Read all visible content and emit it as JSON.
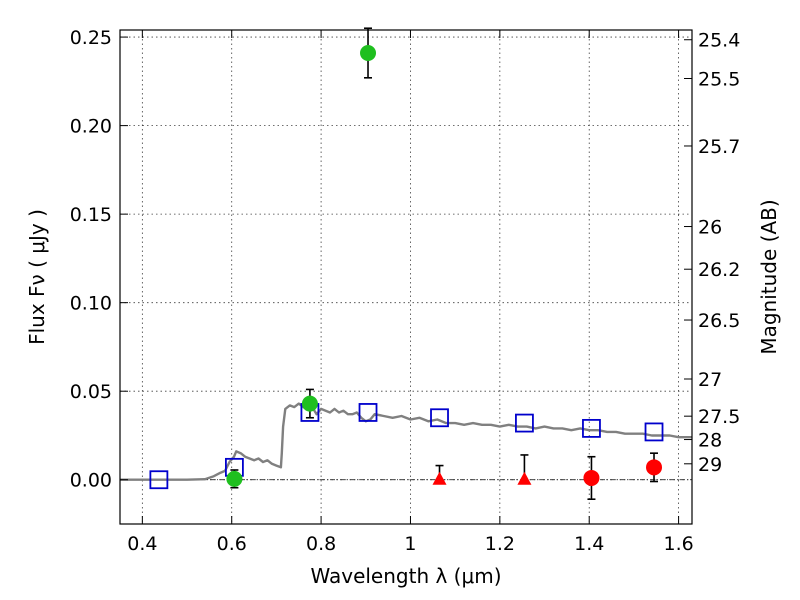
{
  "chart_data": {
    "type": "scatter",
    "title": "",
    "xlabel": "Wavelength  λ (μm)",
    "ylabel": "Flux  Fν  ( μJy )",
    "y2label": "Magnitude (AB)",
    "xlim": [
      0.35,
      1.63
    ],
    "ylim": [
      -0.025,
      0.254
    ],
    "grid": true,
    "x_ticks": [
      0.4,
      0.6,
      0.8,
      1.0,
      1.2,
      1.4,
      1.6
    ],
    "x_tick_labels": [
      "0.4",
      "0.6",
      "0.8",
      "1",
      "1.2",
      "1.4",
      "1.6"
    ],
    "y_ticks": [
      0.0,
      0.05,
      0.1,
      0.15,
      0.2,
      0.25
    ],
    "y_tick_labels": [
      "0.00",
      "0.05",
      "0.10",
      "0.15",
      "0.20",
      "0.25"
    ],
    "mag_ticks": [
      {
        "label": "25.4",
        "flux": 0.2485
      },
      {
        "label": "25.5",
        "flux": 0.2266
      },
      {
        "label": "25.7",
        "flux": 0.1885
      },
      {
        "label": "26",
        "flux": 0.143
      },
      {
        "label": "26.2",
        "flux": 0.1189
      },
      {
        "label": "26.5",
        "flux": 0.0902
      },
      {
        "label": "27",
        "flux": 0.0569
      },
      {
        "label": "27.5",
        "flux": 0.0359
      },
      {
        "label": "28",
        "flux": 0.0227
      },
      {
        "label": "29",
        "flux": 0.009
      }
    ],
    "colors": {
      "model": "#808080",
      "green": "#1fbf1f",
      "red": "#ff0000",
      "blue": "#0000cc",
      "errorbar": "#000000"
    },
    "series": [
      {
        "marker": "line",
        "points": [
          [
            0.35,
            0.0
          ],
          [
            0.5,
            0.0
          ],
          [
            0.54,
            0.0003
          ],
          [
            0.56,
            0.002
          ],
          [
            0.575,
            0.004
          ],
          [
            0.585,
            0.005
          ],
          [
            0.595,
            0.01
          ],
          [
            0.605,
            0.013
          ],
          [
            0.61,
            0.016
          ],
          [
            0.62,
            0.015
          ],
          [
            0.63,
            0.013
          ],
          [
            0.64,
            0.012
          ],
          [
            0.65,
            0.011
          ],
          [
            0.66,
            0.012
          ],
          [
            0.67,
            0.01
          ],
          [
            0.68,
            0.011
          ],
          [
            0.69,
            0.009
          ],
          [
            0.7,
            0.008
          ],
          [
            0.71,
            0.007
          ],
          [
            0.712,
            0.015
          ],
          [
            0.715,
            0.03
          ],
          [
            0.72,
            0.04
          ],
          [
            0.73,
            0.042
          ],
          [
            0.74,
            0.041
          ],
          [
            0.75,
            0.043
          ],
          [
            0.76,
            0.041
          ],
          [
            0.77,
            0.04
          ],
          [
            0.78,
            0.041
          ],
          [
            0.79,
            0.037
          ],
          [
            0.8,
            0.04
          ],
          [
            0.81,
            0.039
          ],
          [
            0.82,
            0.038
          ],
          [
            0.83,
            0.04
          ],
          [
            0.84,
            0.038
          ],
          [
            0.85,
            0.039
          ],
          [
            0.86,
            0.037
          ],
          [
            0.87,
            0.037
          ],
          [
            0.88,
            0.038
          ],
          [
            0.89,
            0.035
          ],
          [
            0.9,
            0.033
          ],
          [
            0.91,
            0.034
          ],
          [
            0.92,
            0.037
          ],
          [
            0.94,
            0.036
          ],
          [
            0.96,
            0.035
          ],
          [
            0.98,
            0.036
          ],
          [
            1.0,
            0.034
          ],
          [
            1.02,
            0.035
          ],
          [
            1.04,
            0.033
          ],
          [
            1.06,
            0.034
          ],
          [
            1.08,
            0.032
          ],
          [
            1.1,
            0.032
          ],
          [
            1.12,
            0.031
          ],
          [
            1.14,
            0.032
          ],
          [
            1.16,
            0.031
          ],
          [
            1.18,
            0.031
          ],
          [
            1.2,
            0.03
          ],
          [
            1.22,
            0.031
          ],
          [
            1.24,
            0.03
          ],
          [
            1.26,
            0.03
          ],
          [
            1.28,
            0.029
          ],
          [
            1.3,
            0.03
          ],
          [
            1.32,
            0.029
          ],
          [
            1.34,
            0.029
          ],
          [
            1.36,
            0.028
          ],
          [
            1.38,
            0.029
          ],
          [
            1.4,
            0.028
          ],
          [
            1.42,
            0.028
          ],
          [
            1.44,
            0.027
          ],
          [
            1.46,
            0.027
          ],
          [
            1.48,
            0.026
          ],
          [
            1.5,
            0.026
          ],
          [
            1.52,
            0.026
          ],
          [
            1.54,
            0.025
          ],
          [
            1.56,
            0.025
          ],
          [
            1.58,
            0.025
          ],
          [
            1.6,
            0.024
          ],
          [
            1.63,
            0.024
          ]
        ]
      },
      {
        "marker": "open-square",
        "points": [
          {
            "x": 0.437,
            "y": 0.0
          },
          {
            "x": 0.606,
            "y": 0.007
          },
          {
            "x": 0.775,
            "y": 0.038
          },
          {
            "x": 0.905,
            "y": 0.038
          },
          {
            "x": 1.065,
            "y": 0.035
          },
          {
            "x": 1.255,
            "y": 0.032
          },
          {
            "x": 1.405,
            "y": 0.029
          },
          {
            "x": 1.545,
            "y": 0.027
          }
        ]
      },
      {
        "marker": "circle",
        "color": "green",
        "points": [
          {
            "x": 0.606,
            "y": 0.0005,
            "err": 0.005
          },
          {
            "x": 0.775,
            "y": 0.043,
            "err": 0.008
          },
          {
            "x": 0.905,
            "y": 0.241,
            "err": 0.014
          }
        ]
      },
      {
        "marker": "triangle",
        "color": "red",
        "points": [
          {
            "x": 1.065,
            "y": 0.0,
            "up": 0.008,
            "down": 0.0
          },
          {
            "x": 1.255,
            "y": 0.0,
            "up": 0.014,
            "down": 0.0
          }
        ]
      },
      {
        "marker": "circle",
        "color": "red",
        "points": [
          {
            "x": 1.405,
            "y": 0.001,
            "err": 0.012
          },
          {
            "x": 1.545,
            "y": 0.007,
            "err": 0.008
          }
        ]
      }
    ]
  }
}
